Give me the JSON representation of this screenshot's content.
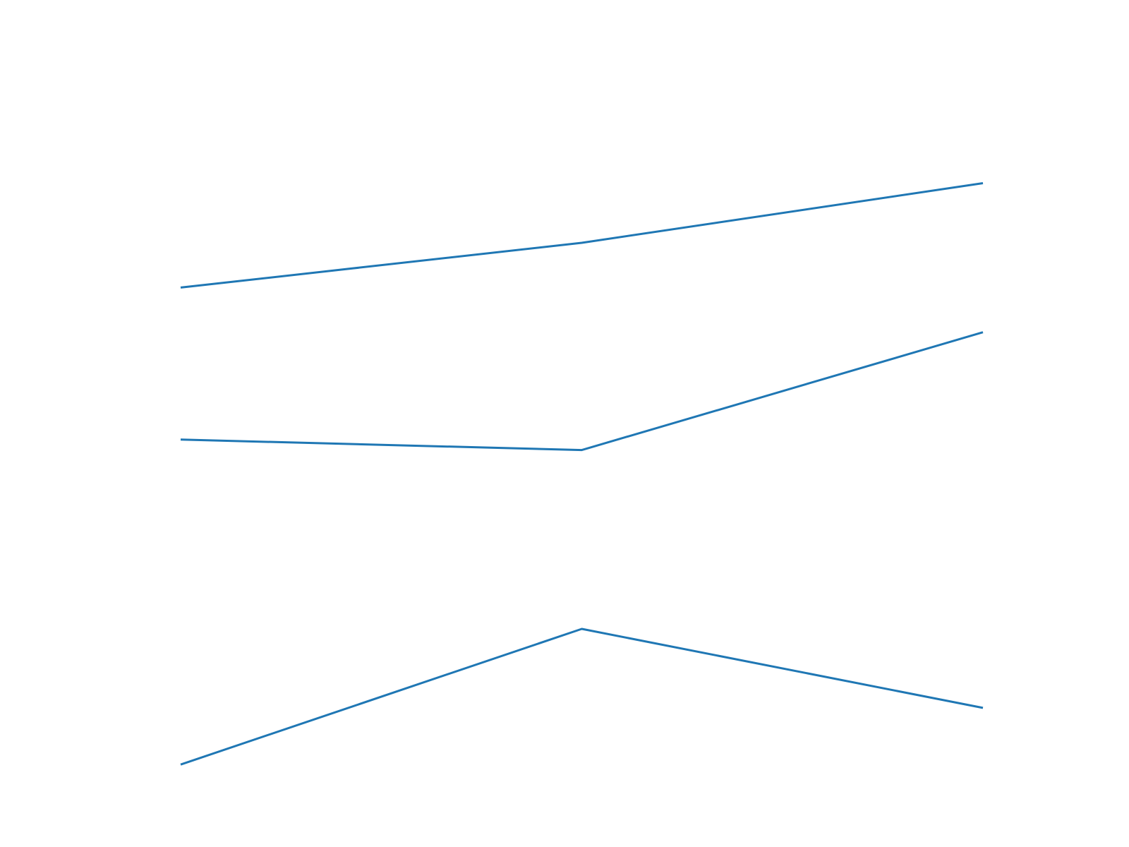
{
  "chart_data": {
    "type": "line",
    "x": [
      0,
      1,
      2
    ],
    "series": [
      {
        "values": [
          1.95,
          2.25,
          2.65
        ]
      },
      {
        "values": [
          0.93,
          0.86,
          1.65
        ]
      },
      {
        "values": [
          -1.25,
          -0.34,
          -0.87
        ]
      }
    ],
    "ylim": [
      -1.5,
      3.5
    ],
    "xlim": [
      0,
      2
    ],
    "grid": false,
    "axes_visible": false,
    "colors": {
      "line": "#1f77b4",
      "background": "#ffffff"
    }
  }
}
